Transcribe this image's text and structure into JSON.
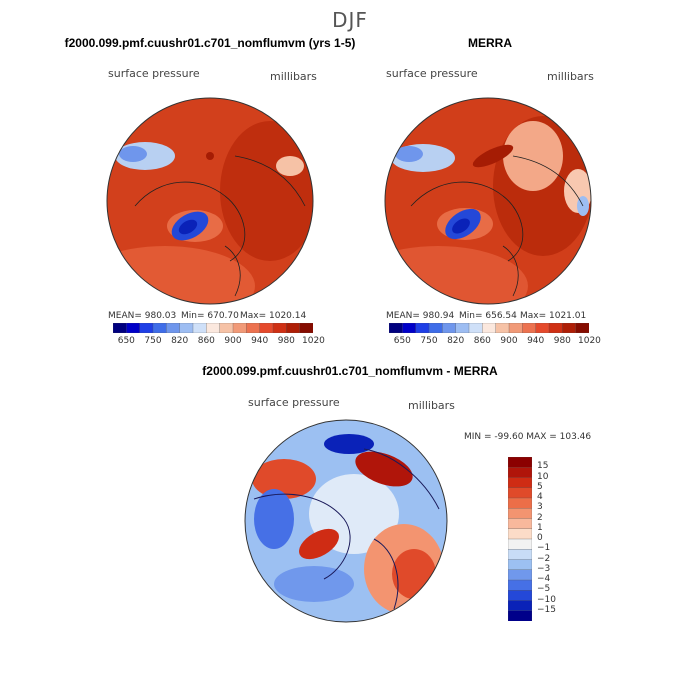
{
  "chart_data": {
    "type": "heatmap",
    "title": "DJF",
    "panels": [
      {
        "title": "f2000.099.pmf.cuushr01.c701_nomflumvm (yrs 1-5)",
        "variable": "surface pressure",
        "units": "millibars",
        "projection": "polar stereographic (north pole)",
        "stats": {
          "mean": "MEAN= 980.03",
          "min": "Min= 670.70",
          "max": "Max= 1020.14"
        },
        "colorbar": {
          "orientation": "horizontal",
          "tick_labels": [
            "650",
            "750",
            "820",
            "860",
            "900",
            "940",
            "980",
            "1020"
          ],
          "colors": [
            "#00007f",
            "#0000c8",
            "#1f3fe6",
            "#3f6de8",
            "#6f96ec",
            "#9dbdf2",
            "#cfe0f8",
            "#fbe8de",
            "#f6c2a6",
            "#f19a78",
            "#ec7250",
            "#e54a2c",
            "#cf3014",
            "#ae1e06",
            "#850c00"
          ]
        }
      },
      {
        "title": "MERRA",
        "variable": "surface pressure",
        "units": "millibars",
        "projection": "polar stereographic (north pole)",
        "stats": {
          "mean": "MEAN= 980.94",
          "min": "Min= 656.54",
          "max": "Max= 1021.01"
        },
        "colorbar": {
          "orientation": "horizontal",
          "tick_labels": [
            "650",
            "750",
            "820",
            "860",
            "900",
            "940",
            "980",
            "1020"
          ],
          "colors": [
            "#00007f",
            "#0000c8",
            "#1f3fe6",
            "#3f6de8",
            "#6f96ec",
            "#9dbdf2",
            "#cfe0f8",
            "#fbe8de",
            "#f6c2a6",
            "#f19a78",
            "#ec7250",
            "#e54a2c",
            "#cf3014",
            "#ae1e06",
            "#850c00"
          ]
        }
      },
      {
        "title": "f2000.099.pmf.cuushr01.c701_nomflumvm - MERRA",
        "variable": "surface pressure",
        "units": "millibars",
        "projection": "polar stereographic (north pole)",
        "stats": {
          "minmax": "MIN = -99.60 MAX = 103.46"
        },
        "colorbar": {
          "orientation": "vertical",
          "tick_labels": [
            "15",
            "10",
            "5",
            "4",
            "3",
            "2",
            "1",
            "0",
            "−1",
            "−2",
            "−3",
            "−4",
            "−5",
            "−10",
            "−15"
          ],
          "colors": [
            "#8b0000",
            "#b0150a",
            "#cf2c14",
            "#e04a2a",
            "#ec6e48",
            "#f39470",
            "#f8b89c",
            "#fcdcc8",
            "#f2f2f2",
            "#c8dcf6",
            "#9cc0f2",
            "#7098ec",
            "#4670e6",
            "#2448d8",
            "#0a22b8",
            "#00008a"
          ]
        }
      }
    ]
  }
}
